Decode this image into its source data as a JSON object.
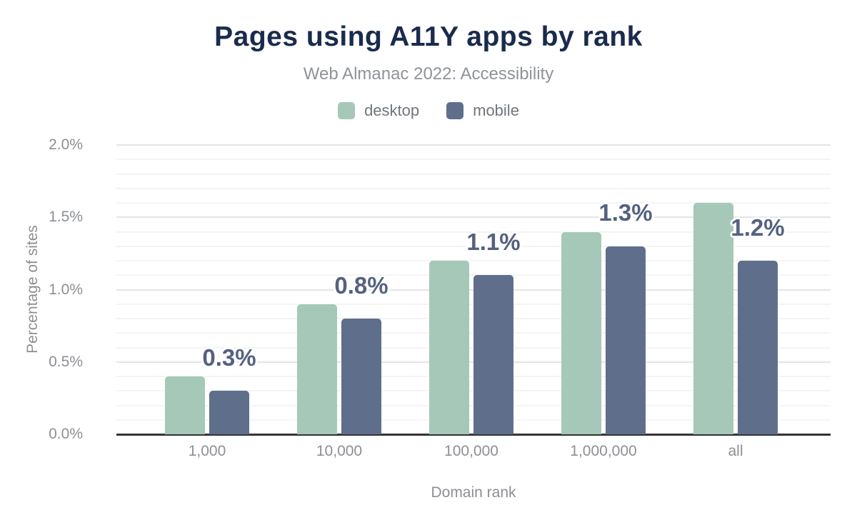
{
  "header": {
    "title": "Pages using A11Y apps by rank",
    "subtitle": "Web Almanac 2022: Accessibility"
  },
  "legend": [
    {
      "label": "desktop",
      "color": "#a6c8b8"
    },
    {
      "label": "mobile",
      "color": "#5f6e8b"
    }
  ],
  "chart_data": {
    "type": "bar",
    "title": "Pages using A11Y apps by rank",
    "subtitle": "Web Almanac 2022: Accessibility",
    "categories": [
      "1,000",
      "10,000",
      "100,000",
      "1,000,000",
      "all"
    ],
    "series": [
      {
        "name": "desktop",
        "color": "#a6c8b8",
        "values": [
          0.4,
          0.9,
          1.2,
          1.4,
          1.6
        ]
      },
      {
        "name": "mobile",
        "color": "#5f6e8b",
        "values": [
          0.3,
          0.8,
          1.1,
          1.3,
          1.2
        ]
      }
    ],
    "data_labels": {
      "labeled_series": "mobile",
      "values": [
        "0.3%",
        "0.8%",
        "1.1%",
        "1.3%",
        "1.2%"
      ]
    },
    "xlabel": "Domain rank",
    "ylabel": "Percentage of sites",
    "ylim": [
      0,
      2.0
    ],
    "y_ticks": [
      "0.0%",
      "0.5%",
      "1.0%",
      "1.5%",
      "2.0%"
    ],
    "y_tick_values": [
      0,
      0.5,
      1.0,
      1.5,
      2.0
    ],
    "grid": {
      "minor_step": 0.1,
      "major_step": 0.5,
      "enabled": true
    },
    "legend_position": "top",
    "colors": {
      "title": "#1b2b4d",
      "subtitle": "#8f939a",
      "data_label": "#556180",
      "axis_text": "#8c8f94",
      "axis_line": "#333333",
      "gridline_minor": "#f4f4f4",
      "gridline_major": "#e4e4e4"
    }
  }
}
